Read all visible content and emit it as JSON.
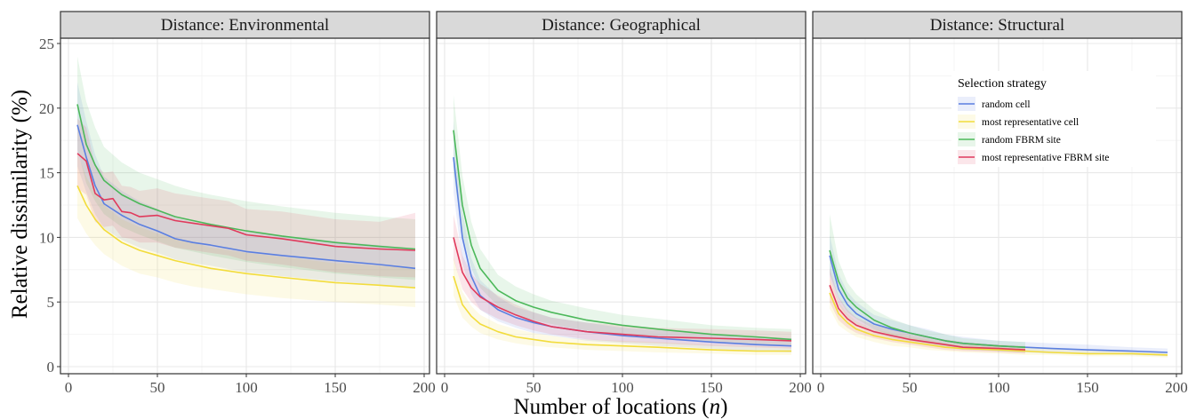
{
  "chart_data": {
    "type": "line",
    "xlabel": "Number of locations",
    "xlabel_var": "n",
    "ylabel": "Relative dissimilarity (%)",
    "xlim": [
      0,
      200
    ],
    "ylim": [
      0,
      25
    ],
    "x_ticks": [
      0,
      50,
      100,
      150,
      200
    ],
    "y_ticks": [
      0,
      5,
      10,
      15,
      20,
      25
    ],
    "grid": true,
    "legend": {
      "title": "Selection strategy",
      "placement": "top-right of third panel"
    },
    "series_styles": [
      {
        "name": "random cell",
        "color": "#5b7fe0"
      },
      {
        "name": "most representative cell",
        "color": "#f2dc3c"
      },
      {
        "name": "random FBRM site",
        "color": "#4cb85a"
      },
      {
        "name": "most representative FBRM site",
        "color": "#e03a5c"
      }
    ],
    "panels": [
      {
        "title": "Distance: Environmental",
        "series": [
          {
            "name": "random cell",
            "x": [
              5,
              10,
              15,
              20,
              30,
              40,
              50,
              60,
              70,
              80,
              100,
              120,
              150,
              175,
              195
            ],
            "y": [
              18.7,
              16.2,
              14.0,
              12.6,
              11.7,
              11.0,
              10.5,
              9.9,
              9.6,
              9.4,
              8.9,
              8.6,
              8.2,
              7.9,
              7.6
            ],
            "lower": [
              15.5,
              13.5,
              11.8,
              10.7,
              9.8,
              9.2,
              8.8,
              8.3,
              8.0,
              7.8,
              7.3,
              7.0,
              6.6,
              6.3,
              6.1
            ],
            "upper": [
              22.0,
              19.0,
              16.4,
              14.7,
              13.6,
              12.8,
              12.2,
              11.5,
              11.2,
              10.9,
              10.4,
              10.1,
              9.7,
              9.4,
              9.1
            ]
          },
          {
            "name": "most representative cell",
            "x": [
              5,
              10,
              15,
              20,
              30,
              40,
              50,
              60,
              70,
              80,
              100,
              120,
              150,
              175,
              195
            ],
            "y": [
              14.0,
              12.5,
              11.4,
              10.6,
              9.6,
              9.0,
              8.6,
              8.2,
              7.9,
              7.6,
              7.2,
              6.9,
              6.5,
              6.3,
              6.1
            ],
            "lower": [
              11.5,
              10.3,
              9.4,
              8.7,
              7.8,
              7.2,
              6.9,
              6.5,
              6.2,
              6.0,
              5.6,
              5.3,
              5.0,
              4.8,
              4.6
            ],
            "upper": [
              16.5,
              14.7,
              13.4,
              12.5,
              11.4,
              10.8,
              10.3,
              9.9,
              9.6,
              9.2,
              8.8,
              8.5,
              8.0,
              7.8,
              7.6
            ]
          },
          {
            "name": "random FBRM site",
            "x": [
              5,
              10,
              15,
              20,
              30,
              40,
              50,
              60,
              70,
              80,
              100,
              120,
              150,
              175,
              195
            ],
            "y": [
              20.3,
              17.2,
              15.6,
              14.4,
              13.3,
              12.6,
              12.1,
              11.6,
              11.3,
              11.0,
              10.5,
              10.1,
              9.6,
              9.3,
              9.1
            ],
            "lower": [
              16.8,
              14.2,
              12.8,
              11.8,
              10.8,
              10.2,
              9.7,
              9.2,
              8.9,
              8.6,
              8.1,
              7.7,
              7.2,
              6.9,
              6.7
            ],
            "upper": [
              24.0,
              20.5,
              18.5,
              17.0,
              15.8,
              15.0,
              14.5,
              14.0,
              13.6,
              13.3,
              12.8,
              12.4,
              11.9,
              11.6,
              11.4
            ]
          },
          {
            "name": "most representative FBRM site",
            "x": [
              5,
              10,
              15,
              20,
              25,
              30,
              35,
              40,
              50,
              60,
              70,
              80,
              90,
              100,
              120,
              150,
              175,
              195
            ],
            "y": [
              16.5,
              15.9,
              13.4,
              12.9,
              13.0,
              12.0,
              11.9,
              11.6,
              11.7,
              11.3,
              11.1,
              10.9,
              10.7,
              10.2,
              9.9,
              9.3,
              9.1,
              9.0
            ],
            "lower": [
              13.8,
              13.3,
              11.2,
              10.8,
              10.9,
              10.0,
              9.9,
              9.6,
              9.6,
              9.2,
              9.0,
              8.8,
              8.6,
              8.2,
              7.9,
              7.3,
              7.0,
              6.9
            ],
            "upper": [
              19.2,
              18.5,
              15.6,
              15.0,
              15.1,
              14.0,
              13.9,
              13.6,
              13.8,
              13.4,
              13.2,
              13.0,
              12.8,
              12.2,
              12.0,
              11.4,
              11.2,
              11.9
            ]
          }
        ]
      },
      {
        "title": "Distance: Geographical",
        "series": [
          {
            "name": "random cell",
            "x": [
              5,
              10,
              15,
              20,
              30,
              40,
              50,
              60,
              70,
              80,
              100,
              120,
              150,
              175,
              195
            ],
            "y": [
              16.2,
              10.0,
              7.0,
              5.5,
              4.4,
              3.8,
              3.4,
              3.1,
              2.9,
              2.7,
              2.4,
              2.2,
              1.9,
              1.7,
              1.6
            ],
            "lower": [
              13.5,
              8.0,
              5.6,
              4.4,
              3.5,
              3.0,
              2.6,
              2.4,
              2.2,
              2.0,
              1.8,
              1.6,
              1.4,
              1.2,
              1.1
            ],
            "upper": [
              19.0,
              12.0,
              8.4,
              6.7,
              5.4,
              4.6,
              4.2,
              3.8,
              3.6,
              3.4,
              3.0,
              2.8,
              2.5,
              2.3,
              2.2
            ]
          },
          {
            "name": "most representative cell",
            "x": [
              5,
              10,
              15,
              20,
              30,
              40,
              50,
              60,
              70,
              80,
              100,
              120,
              150,
              175,
              195
            ],
            "y": [
              7.0,
              4.8,
              3.9,
              3.3,
              2.7,
              2.3,
              2.1,
              1.9,
              1.8,
              1.7,
              1.6,
              1.5,
              1.3,
              1.2,
              1.2
            ],
            "lower": [
              5.5,
              3.8,
              3.1,
              2.6,
              2.1,
              1.8,
              1.6,
              1.5,
              1.4,
              1.3,
              1.2,
              1.1,
              1.0,
              0.9,
              0.9
            ],
            "upper": [
              8.5,
              5.8,
              4.7,
              4.0,
              3.3,
              2.9,
              2.6,
              2.4,
              2.2,
              2.1,
              2.0,
              1.9,
              1.7,
              1.6,
              1.5
            ]
          },
          {
            "name": "random FBRM site",
            "x": [
              5,
              10,
              15,
              20,
              30,
              40,
              50,
              60,
              70,
              80,
              100,
              120,
              150,
              175,
              195
            ],
            "y": [
              18.3,
              12.5,
              9.4,
              7.6,
              5.9,
              5.1,
              4.6,
              4.2,
              3.9,
              3.6,
              3.2,
              2.9,
              2.5,
              2.3,
              2.1
            ],
            "lower": [
              15.0,
              10.2,
              7.6,
              6.1,
              4.7,
              4.0,
              3.6,
              3.3,
              3.0,
              2.8,
              2.5,
              2.2,
              1.9,
              1.7,
              1.6
            ],
            "upper": [
              21.0,
              14.8,
              11.2,
              9.1,
              7.1,
              6.2,
              5.6,
              5.1,
              4.8,
              4.5,
              4.0,
              3.7,
              3.2,
              3.0,
              2.9
            ]
          },
          {
            "name": "most representative FBRM site",
            "x": [
              5,
              10,
              15,
              20,
              30,
              40,
              50,
              60,
              70,
              80,
              100,
              120,
              150,
              175,
              195
            ],
            "y": [
              10.0,
              7.3,
              6.1,
              5.4,
              4.6,
              4.0,
              3.5,
              3.1,
              2.9,
              2.7,
              2.5,
              2.3,
              2.2,
              2.1,
              2.0
            ],
            "lower": [
              8.3,
              6.0,
              5.0,
              4.4,
              3.7,
              3.2,
              2.8,
              2.5,
              2.3,
              2.1,
              1.9,
              1.8,
              1.6,
              1.5,
              1.4
            ],
            "upper": [
              11.8,
              8.6,
              7.2,
              6.4,
              5.5,
              4.8,
              4.2,
              3.8,
              3.6,
              3.4,
              3.2,
              3.0,
              2.9,
              2.8,
              2.7
            ]
          }
        ]
      },
      {
        "title": "Distance: Structural",
        "series": [
          {
            "name": "random cell",
            "x": [
              5,
              10,
              15,
              20,
              30,
              40,
              50,
              60,
              70,
              80,
              100,
              115,
              130,
              150,
              175,
              195
            ],
            "y": [
              8.6,
              6.0,
              4.8,
              4.1,
              3.3,
              2.9,
              2.6,
              2.3,
              2.0,
              1.8,
              1.6,
              1.5,
              1.4,
              1.3,
              1.2,
              1.1
            ],
            "lower": [
              7.0,
              4.8,
              3.8,
              3.2,
              2.6,
              2.2,
              2.0,
              1.7,
              1.5,
              1.3,
              1.2,
              1.1,
              1.0,
              1.0,
              0.9,
              0.8
            ],
            "upper": [
              10.2,
              7.2,
              5.8,
              5.0,
              4.0,
              3.6,
              3.2,
              2.9,
              2.5,
              2.3,
              2.0,
              1.9,
              1.8,
              1.7,
              1.5,
              1.4
            ]
          },
          {
            "name": "most representative cell",
            "x": [
              5,
              10,
              15,
              20,
              30,
              40,
              50,
              60,
              70,
              80,
              100,
              115,
              130,
              150,
              175,
              195
            ],
            "y": [
              5.7,
              4.1,
              3.4,
              2.9,
              2.4,
              2.1,
              1.9,
              1.7,
              1.5,
              1.4,
              1.3,
              1.2,
              1.1,
              1.0,
              1.0,
              0.9
            ],
            "lower": [
              4.5,
              3.2,
              2.7,
              2.3,
              1.9,
              1.6,
              1.5,
              1.3,
              1.2,
              1.1,
              1.0,
              0.9,
              0.9,
              0.8,
              0.8,
              0.7
            ],
            "upper": [
              6.9,
              5.0,
              4.1,
              3.5,
              2.9,
              2.6,
              2.3,
              2.1,
              1.8,
              1.7,
              1.6,
              1.5,
              1.4,
              1.3,
              1.2,
              1.1
            ]
          },
          {
            "name": "random FBRM site",
            "x": [
              5,
              10,
              15,
              20,
              30,
              40,
              50,
              60,
              70,
              80,
              100,
              115
            ],
            "y": [
              9.0,
              6.6,
              5.3,
              4.6,
              3.6,
              3.0,
              2.6,
              2.3,
              2.0,
              1.8,
              1.6,
              1.5
            ],
            "lower": [
              7.2,
              5.3,
              4.2,
              3.7,
              2.9,
              2.4,
              2.1,
              1.8,
              1.6,
              1.4,
              1.2,
              1.1
            ],
            "upper": [
              11.8,
              8.2,
              6.5,
              5.6,
              4.4,
              3.7,
              3.2,
              2.8,
              2.5,
              2.2,
              2.0,
              1.9
            ]
          },
          {
            "name": "most representative FBRM site",
            "x": [
              5,
              10,
              15,
              20,
              30,
              40,
              50,
              60,
              70,
              80,
              100,
              115
            ],
            "y": [
              6.3,
              4.5,
              3.7,
              3.2,
              2.7,
              2.4,
              2.1,
              1.9,
              1.7,
              1.5,
              1.4,
              1.3
            ],
            "lower": [
              5.0,
              3.6,
              3.0,
              2.6,
              2.2,
              1.9,
              1.7,
              1.5,
              1.3,
              1.2,
              1.1,
              1.0
            ],
            "upper": [
              7.6,
              5.4,
              4.4,
              3.8,
              3.2,
              2.9,
              2.5,
              2.3,
              2.1,
              1.9,
              1.7,
              1.6
            ]
          }
        ]
      }
    ]
  }
}
